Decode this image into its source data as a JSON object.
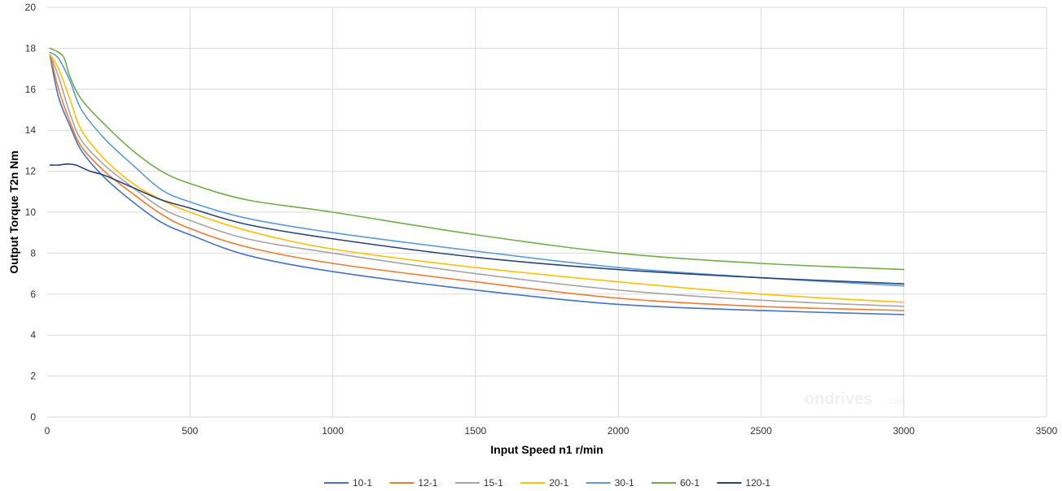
{
  "chart_data": {
    "type": "line",
    "title": "",
    "xlabel": "Input Speed n1 r/min",
    "ylabel": "Output Torque T2n Nm",
    "xlim": [
      0,
      3500
    ],
    "ylim": [
      0,
      20
    ],
    "xticks": [
      0,
      500,
      1000,
      1500,
      2000,
      2500,
      3000,
      3500
    ],
    "yticks": [
      0,
      2,
      4,
      6,
      8,
      10,
      12,
      14,
      16,
      18,
      20
    ],
    "grid": true,
    "legend_position": "bottom",
    "watermark": {
      "main": "ondrives",
      "suffix": ".com"
    },
    "series": [
      {
        "name": "10-1",
        "color": "#4472C4",
        "points": [
          [
            10,
            17.6
          ],
          [
            40,
            15.6
          ],
          [
            80,
            14.2
          ],
          [
            120,
            13.0
          ],
          [
            200,
            11.7
          ],
          [
            300,
            10.5
          ],
          [
            400,
            9.5
          ],
          [
            500,
            8.9
          ],
          [
            700,
            7.9
          ],
          [
            1000,
            7.1
          ],
          [
            1500,
            6.2
          ],
          [
            2000,
            5.5
          ],
          [
            2500,
            5.2
          ],
          [
            3000,
            5.0
          ]
        ]
      },
      {
        "name": "12-1",
        "color": "#ED7D31",
        "points": [
          [
            10,
            17.7
          ],
          [
            40,
            16.0
          ],
          [
            80,
            14.4
          ],
          [
            120,
            13.2
          ],
          [
            200,
            12.0
          ],
          [
            300,
            10.9
          ],
          [
            400,
            9.9
          ],
          [
            500,
            9.2
          ],
          [
            700,
            8.3
          ],
          [
            1000,
            7.5
          ],
          [
            1500,
            6.6
          ],
          [
            2000,
            5.8
          ],
          [
            2500,
            5.4
          ],
          [
            3000,
            5.2
          ]
        ]
      },
      {
        "name": "15-1",
        "color": "#A5A5A5",
        "points": [
          [
            10,
            17.7
          ],
          [
            40,
            16.6
          ],
          [
            80,
            14.8
          ],
          [
            120,
            13.5
          ],
          [
            200,
            12.3
          ],
          [
            300,
            11.2
          ],
          [
            400,
            10.2
          ],
          [
            500,
            9.6
          ],
          [
            700,
            8.7
          ],
          [
            1000,
            8.0
          ],
          [
            1500,
            7.0
          ],
          [
            2000,
            6.2
          ],
          [
            2500,
            5.7
          ],
          [
            3000,
            5.4
          ]
        ]
      },
      {
        "name": "20-1",
        "color": "#FFC000",
        "points": [
          [
            10,
            17.7
          ],
          [
            40,
            17.0
          ],
          [
            80,
            15.5
          ],
          [
            120,
            14.0
          ],
          [
            200,
            12.6
          ],
          [
            300,
            11.4
          ],
          [
            400,
            10.6
          ],
          [
            500,
            10.0
          ],
          [
            700,
            9.1
          ],
          [
            1000,
            8.2
          ],
          [
            1500,
            7.3
          ],
          [
            2000,
            6.6
          ],
          [
            2500,
            6.0
          ],
          [
            3000,
            5.6
          ]
        ]
      },
      {
        "name": "30-1",
        "color": "#5B9BD5",
        "points": [
          [
            10,
            17.8
          ],
          [
            40,
            17.5
          ],
          [
            80,
            16.4
          ],
          [
            120,
            15.0
          ],
          [
            200,
            13.6
          ],
          [
            300,
            12.3
          ],
          [
            400,
            11.1
          ],
          [
            500,
            10.5
          ],
          [
            700,
            9.7
          ],
          [
            1000,
            9.0
          ],
          [
            1500,
            8.1
          ],
          [
            2000,
            7.3
          ],
          [
            2500,
            6.8
          ],
          [
            3000,
            6.4
          ]
        ]
      },
      {
        "name": "60-1",
        "color": "#70AD47",
        "points": [
          [
            10,
            18.0
          ],
          [
            40,
            17.8
          ],
          [
            60,
            17.5
          ],
          [
            80,
            16.6
          ],
          [
            120,
            15.5
          ],
          [
            200,
            14.3
          ],
          [
            300,
            13.0
          ],
          [
            400,
            12.0
          ],
          [
            500,
            11.4
          ],
          [
            700,
            10.6
          ],
          [
            1000,
            10.0
          ],
          [
            1500,
            8.9
          ],
          [
            2000,
            8.0
          ],
          [
            2500,
            7.5
          ],
          [
            3000,
            7.2
          ]
        ]
      },
      {
        "name": "120-1",
        "color": "#264478",
        "points": [
          [
            10,
            12.3
          ],
          [
            40,
            12.3
          ],
          [
            70,
            12.35
          ],
          [
            100,
            12.3
          ],
          [
            150,
            12.0
          ],
          [
            200,
            11.8
          ],
          [
            300,
            11.2
          ],
          [
            400,
            10.6
          ],
          [
            500,
            10.2
          ],
          [
            700,
            9.4
          ],
          [
            1000,
            8.7
          ],
          [
            1500,
            7.8
          ],
          [
            2000,
            7.2
          ],
          [
            2500,
            6.8
          ],
          [
            3000,
            6.5
          ]
        ]
      }
    ]
  }
}
